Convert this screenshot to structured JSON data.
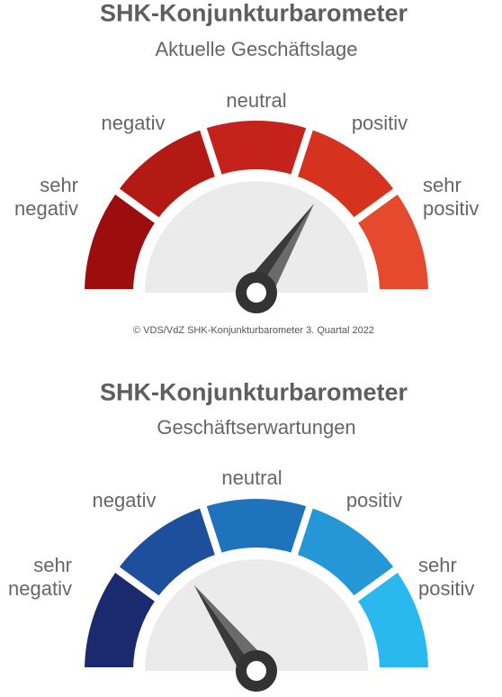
{
  "gauges": [
    {
      "title": "SHK-Konjunkturbarometer",
      "subtitle": "Aktuelle Geschäftslage",
      "labels": [
        "sehr negativ",
        "negativ",
        "neutral",
        "positiv",
        "sehr positiv"
      ],
      "colors": [
        "#9c0d0d",
        "#b31a14",
        "#c4221a",
        "#d6331f",
        "#e5492e"
      ]
    },
    {
      "title": "SHK-Konjunkturbarometer",
      "subtitle": "Geschäftserwartungen",
      "labels": [
        "sehr negativ",
        "negativ",
        "neutral",
        "positiv",
        "sehr positiv"
      ],
      "colors": [
        "#1b2a6e",
        "#1d4f9c",
        "#1f73bd",
        "#2596d6",
        "#29b9ef"
      ]
    }
  ],
  "copyright": "© VDS/VdZ SHK-Konjunkturbarometer 3. Quartal 2022"
}
